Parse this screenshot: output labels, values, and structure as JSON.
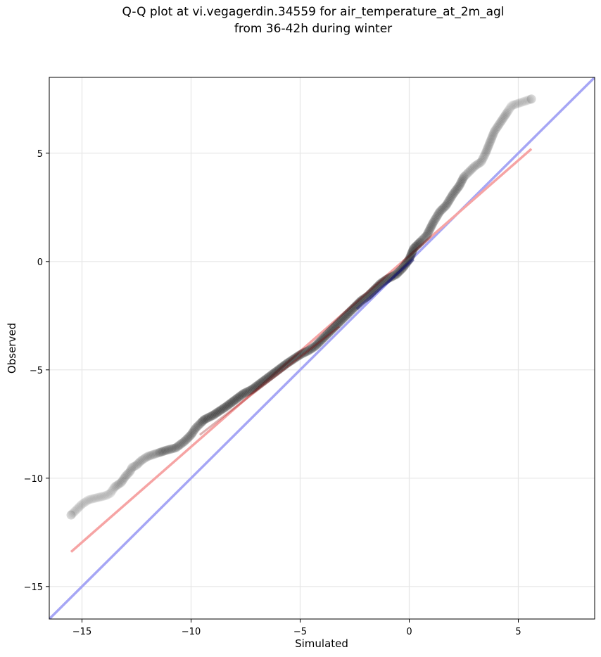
{
  "title_lines": [
    "Q-Q plot at vi.vegagerdin.34559 for air_temperature_at_2m_agl",
    "from 36-42h during winter"
  ],
  "chart_data": {
    "type": "scatter",
    "title": "Q-Q plot at vi.vegagerdin.34559 for air_temperature_at_2m_agl\nfrom 36-42h during winter",
    "xlabel": "Simulated",
    "ylabel": "Observed",
    "xlim": [
      -16.5,
      8.5
    ],
    "ylim": [
      -16.5,
      8.5
    ],
    "xticks": [
      -15,
      -10,
      -5,
      0,
      5
    ],
    "yticks": [
      -15,
      -10,
      -5,
      0,
      5
    ],
    "xtick_labels": [
      "−15",
      "−10",
      "−5",
      "0",
      "5"
    ],
    "ytick_labels": [
      "−15",
      "−10",
      "−5",
      "0",
      "5"
    ],
    "grid": true,
    "legend": "none",
    "quantile_points": {
      "x": [
        -15.5,
        -15.0,
        -14.7,
        -14.3,
        -13.9,
        -13.7,
        -13.5,
        -13.2,
        -13.0,
        -12.8,
        -12.7,
        -12.5,
        -12.3,
        -12.0,
        -11.7,
        -11.4,
        -11.1,
        -10.7,
        -10.3,
        -10.0,
        -9.8,
        -9.6,
        -9.4,
        -9.2,
        -9.0,
        -8.7,
        -8.4,
        -8.0,
        -7.6,
        -7.2,
        -6.8,
        -6.4,
        -6.0,
        -5.6,
        -5.3,
        -5.0,
        -4.6,
        -4.3,
        -4.0,
        -3.7,
        -3.4,
        -3.1,
        -2.8,
        -2.5,
        -2.2,
        -1.9,
        -1.6,
        -1.3,
        -1.0,
        -0.6,
        -0.3,
        0.0,
        0.2,
        0.5,
        0.8,
        1.1,
        1.4,
        1.7,
        2.0,
        2.3,
        2.5,
        2.7,
        3.0,
        3.3,
        3.5,
        3.7,
        3.9,
        4.1,
        4.3,
        4.5,
        4.7,
        5.0,
        5.6
      ],
      "y": [
        -11.7,
        -11.2,
        -11.0,
        -10.9,
        -10.8,
        -10.7,
        -10.4,
        -10.2,
        -9.9,
        -9.7,
        -9.5,
        -9.4,
        -9.2,
        -9.0,
        -8.9,
        -8.8,
        -8.7,
        -8.6,
        -8.3,
        -8.0,
        -7.7,
        -7.5,
        -7.3,
        -7.2,
        -7.1,
        -6.9,
        -6.7,
        -6.4,
        -6.1,
        -5.9,
        -5.6,
        -5.3,
        -5.0,
        -4.7,
        -4.5,
        -4.3,
        -4.1,
        -3.9,
        -3.6,
        -3.3,
        -3.0,
        -2.7,
        -2.4,
        -2.1,
        -1.8,
        -1.6,
        -1.3,
        -1.0,
        -0.8,
        -0.6,
        -0.3,
        0.1,
        0.6,
        0.9,
        1.2,
        1.8,
        2.3,
        2.6,
        3.1,
        3.5,
        3.9,
        4.1,
        4.4,
        4.6,
        5.0,
        5.5,
        6.0,
        6.3,
        6.6,
        6.9,
        7.2,
        7.3,
        7.5
      ]
    },
    "reference_line": {
      "x": [
        -16.5,
        8.5
      ],
      "y": [
        -16.5,
        8.5
      ],
      "color": "#aaaaf5"
    },
    "fit_line": {
      "x": [
        -15.5,
        5.6
      ],
      "y": [
        -13.4,
        5.2
      ],
      "color": "#f5a3a3"
    },
    "colors": {
      "reference_line": "#a6a6f5",
      "fit_line": "#f6a4a4",
      "point": "#000000",
      "central_overlay": "#000080",
      "central_red": "#8b0000"
    }
  }
}
